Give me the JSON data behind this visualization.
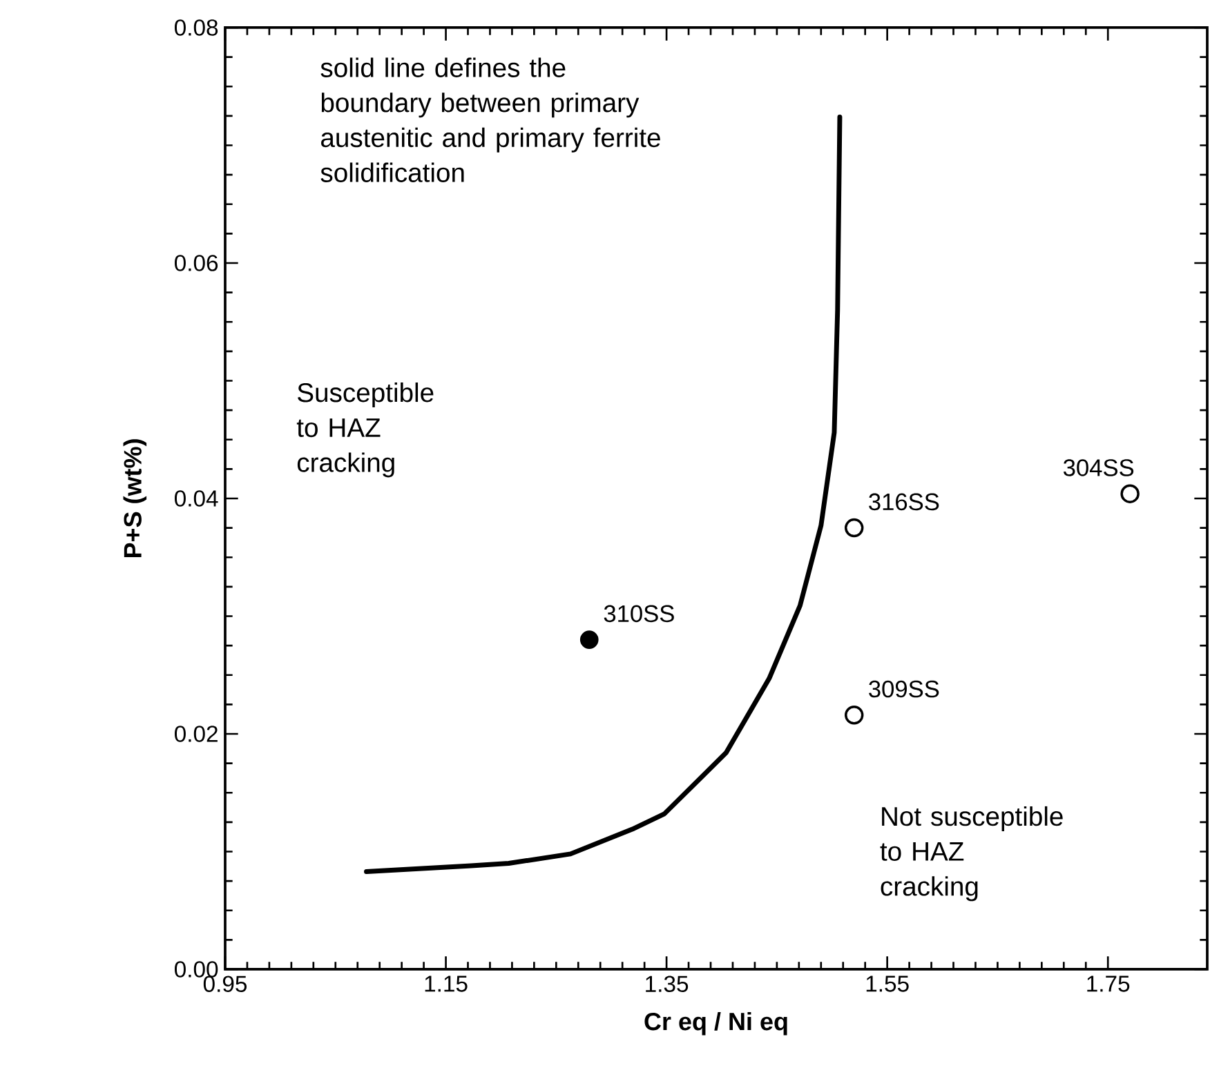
{
  "chart_data": {
    "type": "scatter",
    "xlabel": "Cr eq / Ni eq",
    "ylabel": "P+S (wt%)",
    "xlim": [
      0.95,
      1.84
    ],
    "ylim": [
      0,
      0.08
    ],
    "xticks": [
      {
        "value": 0.95,
        "label": "0.95"
      },
      {
        "value": 1.15,
        "label": "1.15"
      },
      {
        "value": 1.35,
        "label": "1.35"
      },
      {
        "value": 1.55,
        "label": "1.55"
      },
      {
        "value": 1.75,
        "label": "1.75"
      }
    ],
    "yticks": [
      {
        "value": 0,
        "label": "0.00"
      },
      {
        "value": 0.02,
        "label": "0.02"
      },
      {
        "value": 0.04,
        "label": "0.04"
      },
      {
        "value": 0.06,
        "label": "0.06"
      },
      {
        "value": 0.08,
        "label": "0.08"
      }
    ],
    "series": [
      {
        "type": "line",
        "color": "#000000",
        "marker": "none",
        "x": [
          1.078,
          1.173,
          1.207,
          1.263,
          1.319,
          1.348,
          1.404,
          1.443,
          1.471,
          1.49,
          1.502,
          1.505,
          1.507
        ],
        "values": [
          0.0083,
          0.0088,
          0.009,
          0.0098,
          0.0119,
          0.0132,
          0.0184,
          0.0247,
          0.0309,
          0.0377,
          0.0456,
          0.056,
          0.0724
        ]
      },
      {
        "color": "#000000",
        "marker": "circle",
        "x": [
          1.28
        ],
        "values": [
          0.028
        ]
      },
      {
        "color": "#000000",
        "marker": "open circle",
        "x": [
          1.52,
          1.52,
          1.77
        ],
        "values": [
          0.0375,
          0.0216,
          0.0404
        ]
      }
    ],
    "annotations": [
      {
        "text": "310SS",
        "x": 1.28,
        "y": 0.028
      },
      {
        "text": "316SS",
        "x": 1.52,
        "y": 0.0375
      },
      {
        "text": "309SS",
        "x": 1.52,
        "y": 0.0216
      },
      {
        "text": "304SS",
        "x": 1.77,
        "y": 0.0404
      },
      "solid line defines the boundary between primary austenitic and primary ferrite solidification",
      "Susceptible to HAZ cracking",
      "Not susceptible to HAZ cracking"
    ]
  }
}
